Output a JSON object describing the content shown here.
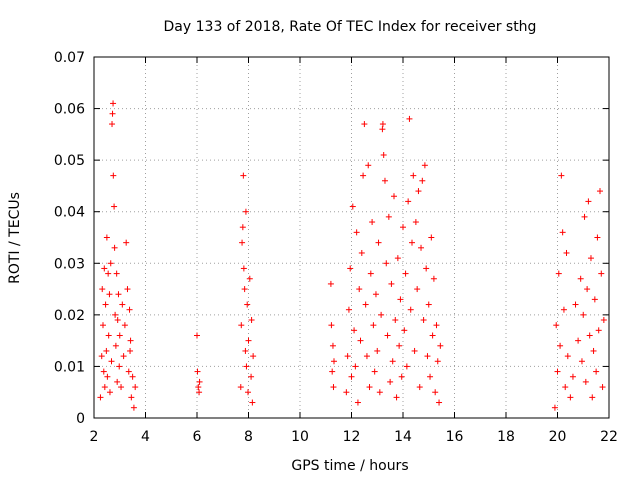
{
  "chart_data": {
    "type": "scatter",
    "title": "Day 133 of 2018, Rate Of TEC Index for receiver sthg",
    "xlabel": "GPS time / hours",
    "ylabel": "ROTI / TECUs",
    "xlim": [
      2,
      22
    ],
    "ylim": [
      0,
      0.07
    ],
    "xticks": [
      2,
      4,
      6,
      8,
      10,
      12,
      14,
      16,
      18,
      20,
      22
    ],
    "yticks": [
      0,
      0.01,
      0.02,
      0.03,
      0.04,
      0.05,
      0.06,
      0.07
    ],
    "xtick_labels": [
      "2",
      "4",
      "6",
      "8",
      "10",
      "12",
      "14",
      "16",
      "18",
      "20",
      "22"
    ],
    "ytick_labels": [
      "0",
      "0.01",
      "0.02",
      "0.03",
      "0.04",
      "0.05",
      "0.06",
      "0.07"
    ],
    "grid": true,
    "marker": "+",
    "series": [
      {
        "name": "ROTI",
        "color": "#ff0000",
        "points": [
          [
            2.25,
            0.004
          ],
          [
            2.3,
            0.012
          ],
          [
            2.32,
            0.025
          ],
          [
            2.35,
            0.018
          ],
          [
            2.38,
            0.009
          ],
          [
            2.4,
            0.029
          ],
          [
            2.42,
            0.006
          ],
          [
            2.45,
            0.022
          ],
          [
            2.48,
            0.013
          ],
          [
            2.5,
            0.035
          ],
          [
            2.52,
            0.008
          ],
          [
            2.55,
            0.028
          ],
          [
            2.57,
            0.016
          ],
          [
            2.6,
            0.024
          ],
          [
            2.62,
            0.005
          ],
          [
            2.65,
            0.03
          ],
          [
            2.68,
            0.011
          ],
          [
            2.7,
            0.057
          ],
          [
            2.72,
            0.059
          ],
          [
            2.74,
            0.061
          ],
          [
            2.75,
            0.047
          ],
          [
            2.78,
            0.041
          ],
          [
            2.8,
            0.033
          ],
          [
            2.82,
            0.02
          ],
          [
            2.85,
            0.014
          ],
          [
            2.88,
            0.028
          ],
          [
            2.9,
            0.007
          ],
          [
            2.92,
            0.019
          ],
          [
            2.95,
            0.024
          ],
          [
            2.98,
            0.01
          ],
          [
            3.0,
            0.016
          ],
          [
            3.05,
            0.006
          ],
          [
            3.1,
            0.022
          ],
          [
            3.15,
            0.012
          ],
          [
            3.2,
            0.018
          ],
          [
            3.25,
            0.034
          ],
          [
            3.3,
            0.025
          ],
          [
            3.35,
            0.009
          ],
          [
            3.38,
            0.021
          ],
          [
            3.4,
            0.013
          ],
          [
            3.42,
            0.015
          ],
          [
            3.45,
            0.004
          ],
          [
            3.5,
            0.008
          ],
          [
            3.55,
            0.002
          ],
          [
            3.6,
            0.006
          ],
          [
            6.0,
            0.016
          ],
          [
            6.02,
            0.009
          ],
          [
            6.05,
            0.006
          ],
          [
            6.08,
            0.005
          ],
          [
            6.1,
            0.007
          ],
          [
            7.7,
            0.006
          ],
          [
            7.72,
            0.018
          ],
          [
            7.75,
            0.034
          ],
          [
            7.78,
            0.037
          ],
          [
            7.8,
            0.047
          ],
          [
            7.82,
            0.029
          ],
          [
            7.85,
            0.025
          ],
          [
            7.88,
            0.013
          ],
          [
            7.9,
            0.04
          ],
          [
            7.92,
            0.01
          ],
          [
            7.95,
            0.022
          ],
          [
            7.98,
            0.005
          ],
          [
            8.0,
            0.015
          ],
          [
            8.05,
            0.027
          ],
          [
            8.1,
            0.008
          ],
          [
            8.12,
            0.019
          ],
          [
            8.15,
            0.003
          ],
          [
            8.18,
            0.012
          ],
          [
            11.2,
            0.026
          ],
          [
            11.22,
            0.018
          ],
          [
            11.25,
            0.009
          ],
          [
            11.28,
            0.014
          ],
          [
            11.3,
            0.006
          ],
          [
            11.32,
            0.011
          ],
          [
            11.8,
            0.005
          ],
          [
            11.85,
            0.012
          ],
          [
            11.9,
            0.021
          ],
          [
            11.95,
            0.029
          ],
          [
            12.0,
            0.008
          ],
          [
            12.05,
            0.041
          ],
          [
            12.1,
            0.017
          ],
          [
            12.15,
            0.01
          ],
          [
            12.2,
            0.036
          ],
          [
            12.25,
            0.003
          ],
          [
            12.3,
            0.025
          ],
          [
            12.35,
            0.015
          ],
          [
            12.4,
            0.032
          ],
          [
            12.45,
            0.047
          ],
          [
            12.5,
            0.057
          ],
          [
            12.55,
            0.022
          ],
          [
            12.6,
            0.012
          ],
          [
            12.65,
            0.049
          ],
          [
            12.7,
            0.006
          ],
          [
            12.75,
            0.028
          ],
          [
            12.8,
            0.038
          ],
          [
            12.85,
            0.018
          ],
          [
            12.9,
            0.009
          ],
          [
            12.95,
            0.024
          ],
          [
            13.0,
            0.013
          ],
          [
            13.05,
            0.034
          ],
          [
            13.1,
            0.005
          ],
          [
            13.15,
            0.02
          ],
          [
            13.2,
            0.056
          ],
          [
            13.22,
            0.057
          ],
          [
            13.25,
            0.051
          ],
          [
            13.3,
            0.046
          ],
          [
            13.35,
            0.03
          ],
          [
            13.4,
            0.016
          ],
          [
            13.45,
            0.039
          ],
          [
            13.5,
            0.007
          ],
          [
            13.55,
            0.026
          ],
          [
            13.6,
            0.011
          ],
          [
            13.65,
            0.043
          ],
          [
            13.7,
            0.019
          ],
          [
            13.75,
            0.004
          ],
          [
            13.8,
            0.031
          ],
          [
            13.85,
            0.014
          ],
          [
            13.9,
            0.023
          ],
          [
            13.95,
            0.008
          ],
          [
            14.0,
            0.037
          ],
          [
            14.05,
            0.017
          ],
          [
            14.1,
            0.028
          ],
          [
            14.15,
            0.01
          ],
          [
            14.2,
            0.042
          ],
          [
            14.25,
            0.058
          ],
          [
            14.3,
            0.021
          ],
          [
            14.35,
            0.034
          ],
          [
            14.4,
            0.047
          ],
          [
            14.45,
            0.013
          ],
          [
            14.5,
            0.038
          ],
          [
            14.55,
            0.025
          ],
          [
            14.6,
            0.044
          ],
          [
            14.65,
            0.006
          ],
          [
            14.7,
            0.033
          ],
          [
            14.75,
            0.046
          ],
          [
            14.8,
            0.019
          ],
          [
            14.85,
            0.049
          ],
          [
            14.9,
            0.029
          ],
          [
            14.95,
            0.012
          ],
          [
            15.0,
            0.022
          ],
          [
            15.05,
            0.008
          ],
          [
            15.1,
            0.035
          ],
          [
            15.15,
            0.016
          ],
          [
            15.2,
            0.027
          ],
          [
            15.25,
            0.005
          ],
          [
            15.3,
            0.018
          ],
          [
            15.35,
            0.011
          ],
          [
            15.4,
            0.003
          ],
          [
            15.45,
            0.014
          ],
          [
            19.9,
            0.002
          ],
          [
            19.95,
            0.018
          ],
          [
            20.0,
            0.009
          ],
          [
            20.05,
            0.028
          ],
          [
            20.1,
            0.014
          ],
          [
            20.15,
            0.047
          ],
          [
            20.2,
            0.036
          ],
          [
            20.25,
            0.021
          ],
          [
            20.3,
            0.006
          ],
          [
            20.35,
            0.032
          ],
          [
            20.4,
            0.012
          ],
          [
            20.5,
            0.004
          ],
          [
            20.6,
            0.008
          ],
          [
            20.7,
            0.022
          ],
          [
            20.8,
            0.015
          ],
          [
            20.9,
            0.027
          ],
          [
            20.95,
            0.011
          ],
          [
            21.0,
            0.02
          ],
          [
            21.05,
            0.039
          ],
          [
            21.1,
            0.007
          ],
          [
            21.15,
            0.025
          ],
          [
            21.2,
            0.042
          ],
          [
            21.25,
            0.016
          ],
          [
            21.3,
            0.031
          ],
          [
            21.35,
            0.004
          ],
          [
            21.4,
            0.013
          ],
          [
            21.45,
            0.023
          ],
          [
            21.5,
            0.009
          ],
          [
            21.55,
            0.035
          ],
          [
            21.6,
            0.017
          ],
          [
            21.65,
            0.044
          ],
          [
            21.7,
            0.028
          ],
          [
            21.75,
            0.006
          ],
          [
            21.8,
            0.019
          ]
        ]
      }
    ]
  }
}
